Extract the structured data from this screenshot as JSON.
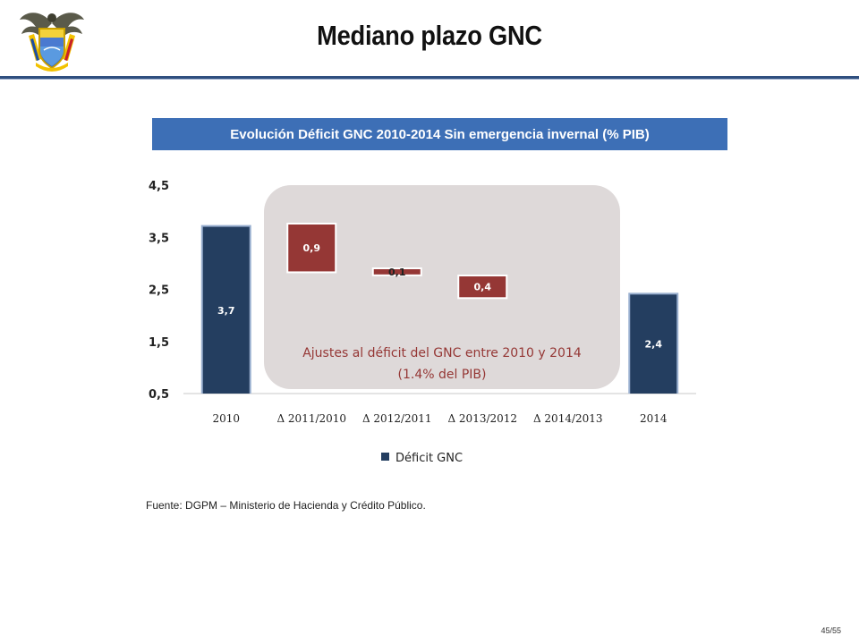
{
  "slide": {
    "title": "Mediano plazo GNC",
    "source": "Fuente: DGPM – Ministerio de Hacienda y Crédito Público.",
    "page_number": "45/55"
  },
  "chart_data": {
    "type": "bar",
    "title": "Evolución Déficit GNC 2010-2014 Sin emergencia invernal  (% PIB)",
    "categories": [
      "2010",
      "Δ 2011/2010",
      "Δ 2012/2011",
      "Δ 2013/2012",
      "Δ 2014/2013",
      "2014"
    ],
    "series": [
      {
        "name": "Déficit GNC",
        "values": [
          3.7,
          0.9,
          0.1,
          0.4,
          null,
          2.4
        ]
      }
    ],
    "data_labels": [
      "3,7",
      "0,9",
      "0,1",
      "0,4",
      "",
      "2,4"
    ],
    "yticks": [
      "0,5",
      "1,5",
      "2,5",
      "3,5",
      "4,5"
    ],
    "ylim": [
      0.5,
      4.5
    ],
    "annotation": {
      "line1": "Ajustes al déficit  del GNC entre 2010 y 2014",
      "line2": "(1.4% del PIB)"
    },
    "legend_position": "bottom",
    "colors": {
      "total_bar": "#243e60",
      "adjust_bar": "#953735",
      "panel": "#ded9d9",
      "banner": "#3d6fb6",
      "annotation_text": "#953735"
    }
  }
}
